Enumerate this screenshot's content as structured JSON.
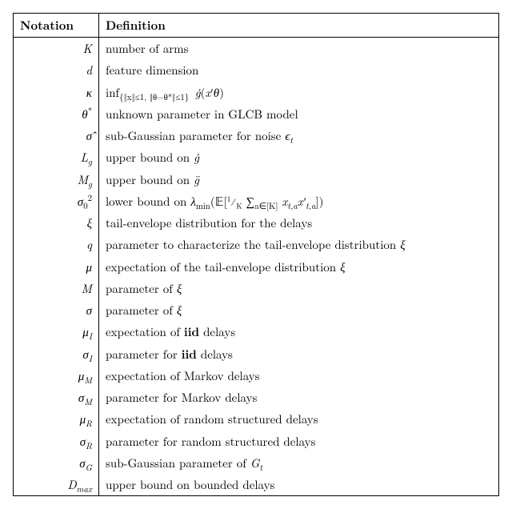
{
  "headers": {
    "notation": "Notation",
    "definition": "Definition"
  },
  "rows": [
    {
      "notation": "<i>K</i>",
      "definition": "number of arms"
    },
    {
      "notation": "<i>d</i>",
      "definition": "feature dimension"
    },
    {
      "notation": "<i>κ</i>",
      "definition": "inf<sub>{‖x‖≤1, ‖θ−θ*‖≤1}</sub>&nbsp;<i>ġ</i>(<i>x</i>′<i>θ</i>)"
    },
    {
      "notation": "<i>θ</i><span class='suptext upright'>*</span>",
      "definition": "unknown parameter in GLCB model"
    },
    {
      "notation": "<i>σ̂</i>",
      "definition": "sub-Gaussian parameter for noise <i>ϵ<sub>t</sub></i>"
    },
    {
      "notation": "<i>L<sub>g</sub></i>",
      "definition": "upper bound on <i>ġ</i>"
    },
    {
      "notation": "<i>M<sub>g</sub></i>",
      "definition": "upper bound on <i>g̈</i>"
    },
    {
      "notation": "<i>σ</i><span class='subtext upright'>0</span><span class='suptext upright'>2</span>",
      "definition": "lower bound on <i>λ</i><sub>min</sub>(𝔼[<span style='font-size:0.85em'><sup>1</sup>⁄<sub>K</sub></span> ∑<sub>a∈[K]</sub> <i>x<sub>t,a</sub>x′<sub>t,a</sub></i>])"
    },
    {
      "notation": "<i>ξ</i>",
      "definition": "tail-envelope distribution for the delays"
    },
    {
      "notation": "<i>q</i>",
      "definition": "parameter to characterize the tail-envelope distribution <i>ξ</i>"
    },
    {
      "notation": "<i>μ</i>",
      "definition": "expectation of the tail-envelope distribution <i>ξ</i>"
    },
    {
      "notation": "<i>M</i>",
      "definition": "parameter of <i>ξ</i>"
    },
    {
      "notation": "<i>σ</i>",
      "definition": "parameter of <i>ξ</i>"
    },
    {
      "notation": "<i>μ<sub>I</sub></i>",
      "definition": "expectation of <b>iid</b> delays"
    },
    {
      "notation": "<i>σ<sub>I</sub></i>",
      "definition": "parameter for <b>iid</b> delays"
    },
    {
      "notation": "<i>μ<sub>M</sub></i>",
      "definition": "expectation of Markov delays"
    },
    {
      "notation": "<i>σ<sub>M</sub></i>",
      "definition": "parameter for Markov delays"
    },
    {
      "notation": "<i>μ<sub>R</sub></i>",
      "definition": "expectation of random structured delays"
    },
    {
      "notation": "<i>σ<sub>R</sub></i>",
      "definition": "parameter for random structured delays"
    },
    {
      "notation": "<i>σ<sub>G</sub></i>",
      "definition": "sub-Gaussian parameter of <i>G<sub>t</sub></i>"
    },
    {
      "notation": "<i>D<sub>max</sub></i>",
      "definition": "upper bound on bounded delays"
    }
  ]
}
